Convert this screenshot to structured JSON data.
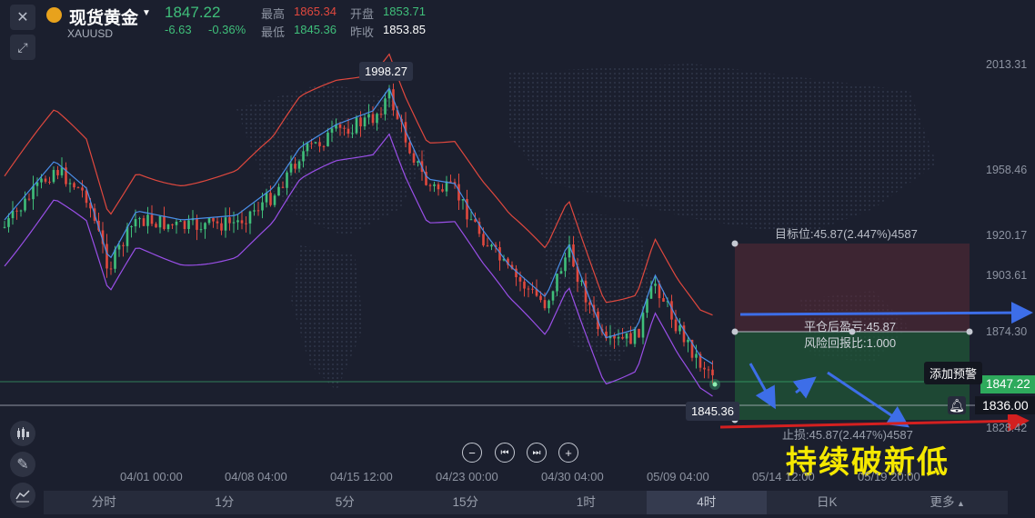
{
  "header": {
    "title": "现货黄金",
    "symbol": "XAUUSD",
    "price": "1847.22",
    "change": "-6.63",
    "change_pct": "-0.36%",
    "high_label": "最高",
    "high": "1865.34",
    "open_label": "开盘",
    "open": "1853.71",
    "low_label": "最低",
    "low": "1845.36",
    "prev_label": "昨收",
    "prev": "1853.85"
  },
  "colors": {
    "up": "#3fbf7a",
    "down": "#e0483e",
    "bg": "#1b1f2e",
    "upper_band": "#e0483e",
    "mid_band": "#4a8ee8",
    "lower_band": "#9a4fe8",
    "caption": "#f5e800"
  },
  "icons": [
    "close-icon",
    "expand-icon",
    "coin-icon",
    "dropdown-icon",
    "candlestick-icon",
    "pen-icon",
    "indicator-icon",
    "bell-icon"
  ],
  "y_axis": [
    "2013.31",
    "1958.46",
    "1920.17",
    "1903.61",
    "1874.30",
    "1828.42"
  ],
  "x_axis": [
    "04/01 00:00",
    "04/08 04:00",
    "04/15 12:00",
    "04/23 00:00",
    "04/30 04:00",
    "05/09 04:00",
    "05/14 12:00",
    "05/19 20:00"
  ],
  "annotations": {
    "peak_price": "1998.27",
    "low_price": "1845.36",
    "target": "目标位:45.87(2.447%)4587",
    "close_pnl": "平仓后盈亏:45.87",
    "risk_ratio": "风险回报比:1.000",
    "stop": "止损:45.87(2.447%)4587",
    "current_price": "1847.22",
    "alert_price": "1836.00",
    "add_alert": "添加预警",
    "caption": "持续破新低"
  },
  "timeframes": [
    "分时",
    "1分",
    "5分",
    "15分",
    "1时",
    "4时",
    "日K",
    "更多"
  ],
  "active_timeframe": "4时",
  "chart_data": {
    "type": "candlestick",
    "indicator": "Bollinger Bands",
    "x_range": [
      "04/01 00:00",
      "05/19 20:00"
    ],
    "ylim": [
      1828.42,
      2013.31
    ],
    "latest": {
      "close": 1847.22,
      "high": 1865.34,
      "low": 1845.36,
      "open": 1853.71,
      "prev_close": 1853.85
    },
    "period_high": 1998.27,
    "period_low": 1845.36
  }
}
